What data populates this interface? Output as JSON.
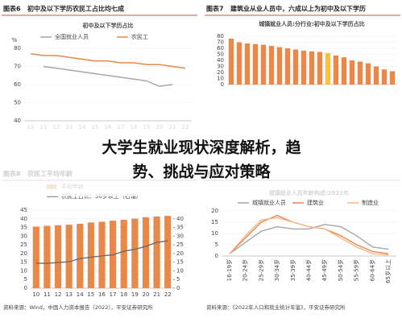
{
  "headline": [
    "大学生就业现状深度解析，趋",
    "势、挑战与应对策略"
  ],
  "chart_data": [
    {
      "type": "line",
      "label": "图表6",
      "title": "初中及以下学历农民工占比均七成",
      "subtitle": "初中及以下学历占比",
      "y_unit": "%",
      "categories": [
        "10",
        "11",
        "12",
        "13",
        "14",
        "15",
        "16",
        "17",
        "18",
        "19",
        "20",
        "21",
        "22"
      ],
      "series": [
        {
          "name": "全国就业人员",
          "color": "#a6a6a6",
          "values": [
            null,
            70,
            69,
            68,
            67,
            66,
            65,
            64,
            63,
            62,
            59,
            60,
            null
          ]
        },
        {
          "name": "农民工",
          "color": "#e8894a",
          "values": [
            77,
            76,
            76,
            75,
            74,
            73,
            73,
            72,
            72,
            71,
            71,
            70,
            69
          ]
        }
      ],
      "ylim": [
        40,
        80
      ],
      "yticks": [
        40,
        50,
        60,
        70,
        80
      ]
    },
    {
      "type": "bar",
      "label": "图表7",
      "title": "建筑业从业人员中，六成以上为初中及以下学历",
      "subtitle": "城镇就业人员:分行业:初中及以下学历占比",
      "categories": [
        null,
        null,
        null,
        null,
        null,
        null,
        null,
        null,
        null,
        null,
        null,
        null,
        null,
        null,
        null,
        null,
        null,
        null,
        null,
        null,
        null
      ],
      "values": [
        76,
        70,
        68,
        67,
        66,
        64,
        62,
        60,
        58,
        56,
        55,
        54,
        52,
        48,
        45,
        40,
        38,
        35,
        30,
        25,
        22
      ],
      "colors": [
        "#e8894a",
        "#e8894a",
        "#e8894a",
        "#e8894a",
        "#e8894a",
        "#e8894a",
        "#e8894a",
        "#e8894a",
        "#e8894a",
        "#e8894a",
        "#e8894a",
        "#e8894a",
        "#f5c242",
        "#e8894a",
        "#e8894a",
        "#e8894a",
        "#e8894a",
        "#e8894a",
        "#e8894a",
        "#e8894a",
        "#e8894a"
      ],
      "ylim": [
        0,
        80
      ],
      "yticks": [
        0,
        10,
        20,
        30,
        40,
        50,
        60,
        70,
        80
      ]
    },
    {
      "type": "combo",
      "label": "图表8",
      "title": "农民工平均年龄",
      "categories": [
        "10",
        "11",
        "12",
        "13",
        "14",
        "15",
        "16",
        "17",
        "18",
        "19",
        "20",
        "21",
        "22"
      ],
      "series": [
        {
          "name": "平均年龄",
          "kind": "bar",
          "color": "#e8894a",
          "values": [
            35.5,
            36,
            36.3,
            36.6,
            37.1,
            37.9,
            38.3,
            38.9,
            39.4,
            40.1,
            40.9,
            41.3,
            41.7
          ]
        },
        {
          "name": "农民工占比：50岁以上（右轴）",
          "kind": "line",
          "axis": "y2",
          "color": "#6b6b6b",
          "values": [
            14.4,
            14.3,
            14.8,
            15.2,
            17.1,
            17.9,
            18.6,
            19.2,
            21.3,
            22.4,
            24.1,
            26.4,
            27.3
          ]
        }
      ],
      "ylim": [
        0,
        45
      ],
      "yticks": [
        0,
        5,
        10,
        15,
        20,
        25,
        30,
        35,
        40,
        45
      ],
      "y2lim": [
        0,
        45
      ],
      "y2ticks": [
        0,
        5,
        10,
        15,
        20,
        25,
        30,
        35,
        40
      ],
      "source": "资料来源：Wind，中国人力资本报告（2022），平安证券研究所"
    },
    {
      "type": "line",
      "label": "图表9",
      "subtitle": "城镇就业人员年龄构成:2021年",
      "categories": [
        "16-19岁",
        "20-24岁",
        "25-29岁",
        "30-34岁",
        "35-39岁",
        "40-44岁",
        "45-49岁",
        "50-54岁",
        "55-59岁",
        "60-64岁",
        "65岁以上"
      ],
      "series": [
        {
          "name": "城镇就业人员",
          "color": "#a6a6a6",
          "values": [
            1,
            6,
            11,
            13,
            12,
            12,
            14,
            13,
            9,
            4,
            3
          ]
        },
        {
          "name": "建筑业",
          "color": "#e8894a",
          "values": [
            1,
            8,
            15,
            18,
            15,
            13,
            12,
            9,
            5,
            2,
            1
          ]
        },
        {
          "name": "制造业",
          "color": "#f3b88c",
          "values": [
            1,
            9,
            16,
            17,
            15,
            13,
            12,
            8,
            4,
            1,
            0.5
          ]
        }
      ],
      "ylim": [
        0,
        20
      ],
      "yticks": [
        0,
        5,
        10,
        15,
        20
      ],
      "source": "资料来源：《2022年人口和就业统计年鉴》，平安证券研究所"
    }
  ]
}
